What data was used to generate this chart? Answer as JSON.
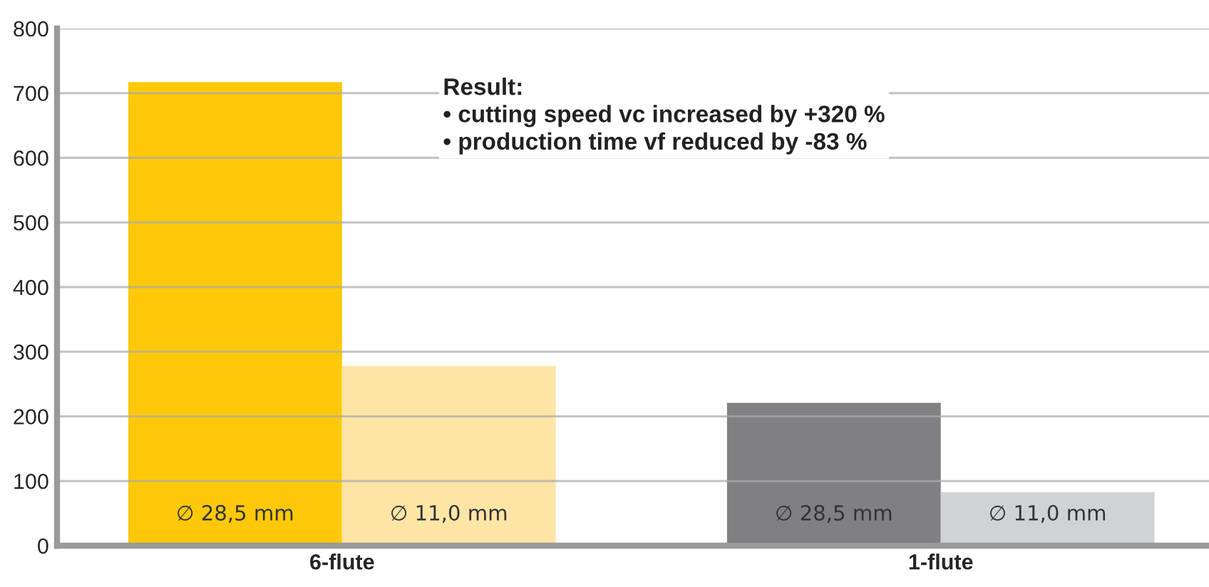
{
  "chart_data": {
    "type": "bar",
    "categories": [
      "6-flute",
      "1-flute"
    ],
    "series": [
      {
        "name": "∅ 28,5 mm",
        "colors": [
          "#fec80a",
          "#808083"
        ],
        "values": [
          717,
          221
        ]
      },
      {
        "name": "∅ 11,0 mm",
        "colors": [
          "#fee5a5",
          "#d1d2d4"
        ],
        "values": [
          278,
          83
        ]
      }
    ],
    "ylim": [
      0,
      800
    ],
    "yticks": [
      0,
      100,
      200,
      300,
      400,
      500,
      600,
      700,
      800
    ],
    "grid": "y",
    "legend": false,
    "annotations": [
      "Result:\n• cutting speed vc increased by +320 %\n• production time vf reduced by -83 %"
    ]
  }
}
